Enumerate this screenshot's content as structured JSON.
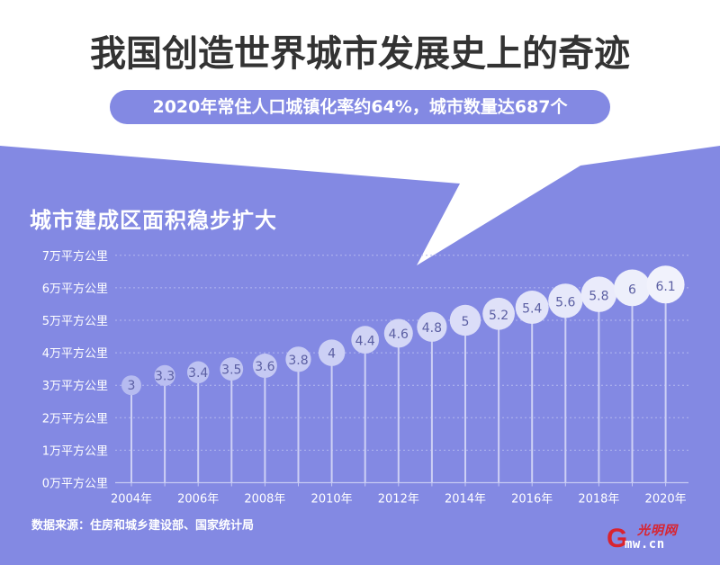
{
  "header": {
    "title": "我国创造世界城市发展史上的奇迹",
    "subtitle": "2020年常住人口城镇化率约64%，城市数量达687个"
  },
  "colors": {
    "accent": "#8389e3",
    "title_text": "#333333",
    "bubble_text": "#5b5fa3",
    "stem": "#cdd0f5",
    "gridline": "#b3b7f0",
    "logo_red": "#d9232f"
  },
  "chart_data": {
    "type": "lollipop",
    "title": "城市建成区面积稳步扩大",
    "xlabel": "",
    "ylabel": "",
    "ylim": [
      0,
      7
    ],
    "y_unit": "万平方公里",
    "y_ticks": [
      "0万平方公里",
      "1万平方公里",
      "2万平方公里",
      "3万平方公里",
      "4万平方公里",
      "5万平方公里",
      "6万平方公里",
      "7万平方公里"
    ],
    "x_tick_labels": [
      "2004年",
      "2006年",
      "2008年",
      "2010年",
      "2012年",
      "2014年",
      "2016年",
      "2018年",
      "2020年"
    ],
    "grid": true,
    "categories": [
      "2004",
      "2005",
      "2006",
      "2007",
      "2008",
      "2009",
      "2010",
      "2011",
      "2012",
      "2013",
      "2014",
      "2015",
      "2016",
      "2017",
      "2018",
      "2019",
      "2020"
    ],
    "values": [
      3,
      3.3,
      3.4,
      3.5,
      3.6,
      3.8,
      4,
      4.4,
      4.6,
      4.8,
      5,
      5.2,
      5.4,
      5.6,
      5.8,
      6,
      6.1
    ],
    "labels": [
      "3",
      "3.3",
      "3.4",
      "3.5",
      "3.6",
      "3.8",
      "4",
      "4.4",
      "4.6",
      "4.8",
      "5",
      "5.2",
      "5.4",
      "5.6",
      "5.8",
      "6",
      "6.1"
    ]
  },
  "footer": {
    "source": "数据来源：住房和城乡建设部、国家统计局"
  },
  "logo": {
    "letter": "G",
    "chinese": "光明网",
    "domain": "mw.cn"
  }
}
